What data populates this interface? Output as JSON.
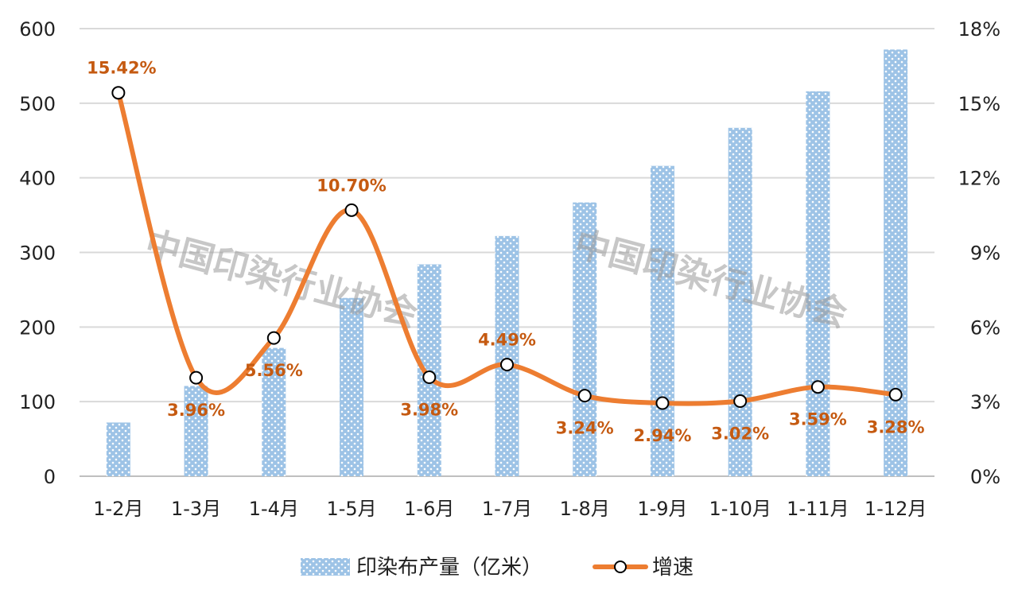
{
  "chart_data": {
    "type": "bar+line",
    "categories": [
      "1-2月",
      "1-3月",
      "1-4月",
      "1-5月",
      "1-6月",
      "1-7月",
      "1-8月",
      "1-9月",
      "1-10月",
      "1-11月",
      "1-12月"
    ],
    "series": [
      {
        "name": "印染布产量（亿米）",
        "type": "bar",
        "axis": "left",
        "color": "#9dc3e6",
        "values": [
          72,
          121,
          172,
          239,
          284,
          322,
          367,
          416,
          467,
          516,
          572
        ]
      },
      {
        "name": "增速",
        "type": "line",
        "axis": "right",
        "color": "#ed7d31",
        "smooth": true,
        "marker": "hollow-circle",
        "values": [
          15.42,
          3.96,
          5.56,
          10.7,
          3.98,
          4.49,
          3.24,
          2.94,
          3.02,
          3.59,
          3.28
        ],
        "labels": [
          "15.42%",
          "3.96%",
          "5.56%",
          "10.70%",
          "3.98%",
          "4.49%",
          "3.24%",
          "2.94%",
          "3.02%",
          "3.59%",
          "3.28%"
        ],
        "label_color": "#c55a11"
      }
    ],
    "y_left": {
      "range": [
        0,
        600
      ],
      "ticks": [
        "0",
        "100",
        "200",
        "300",
        "400",
        "500",
        "600"
      ]
    },
    "y_right": {
      "range": [
        0,
        18
      ],
      "ticks": [
        "0%",
        "3%",
        "6%",
        "9%",
        "12%",
        "15%",
        "18%"
      ]
    },
    "grid": true,
    "legend": "bottom",
    "watermark": "中国印染行业协会"
  }
}
